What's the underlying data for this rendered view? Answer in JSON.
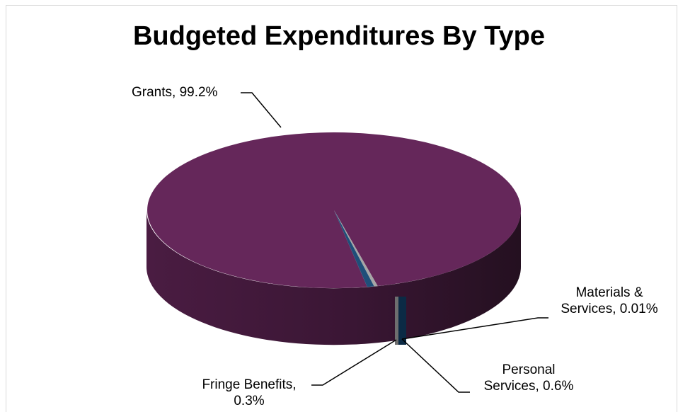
{
  "chart_data": {
    "type": "pie",
    "title": "Budgeted Expenditures By Type",
    "slices": [
      {
        "label": "Grants, 99.2%",
        "category": "Grants",
        "value": 99.2,
        "color": "#65275a"
      },
      {
        "label": "Materials & Services, 0.01%",
        "label_lines": [
          "Materials &",
          "Services, 0.01%"
        ],
        "category": "Materials & Services",
        "value": 0.01,
        "color": "#7f7f7f"
      },
      {
        "label": "Personal Services, 0.6%",
        "label_lines": [
          "Personal",
          "Services, 0.6%"
        ],
        "category": "Personal Services",
        "value": 0.6,
        "color": "#1f4e79"
      },
      {
        "label": "Fringe Benefits, 0.3%",
        "label_lines": [
          "Fringe Benefits,",
          "0.3%"
        ],
        "category": "Fringe Benefits",
        "value": 0.3,
        "color": "#a6a6a6"
      }
    ],
    "style": "3d-pie",
    "legend": "none"
  }
}
